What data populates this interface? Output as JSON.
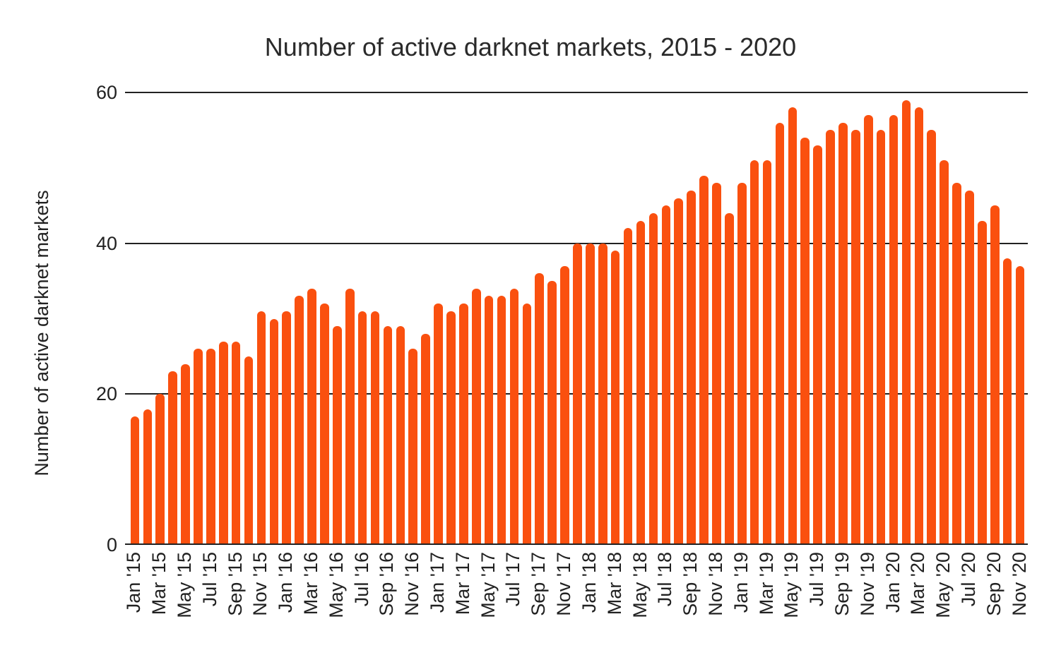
{
  "chart_data": {
    "type": "bar",
    "title": "Number of active darknet markets, 2015 - 2020",
    "xlabel": "",
    "ylabel": "Number of active darknet markets",
    "ylim": [
      0,
      60
    ],
    "yticks": [
      0,
      20,
      40,
      60
    ],
    "grid": "horizontal",
    "legend": "none",
    "x_tick_interval": 2,
    "bar_color": "#fa500f",
    "grid_color": "#212121",
    "text_color": "#212121",
    "background_color": "#ffffff",
    "categories": [
      "Jan '15",
      "Feb '15",
      "Mar '15",
      "Apr '15",
      "May '15",
      "Jun '15",
      "Jul '15",
      "Aug '15",
      "Sep '15",
      "Oct '15",
      "Nov '15",
      "Dec '15",
      "Jan '16",
      "Feb '16",
      "Mar '16",
      "Apr '16",
      "May '16",
      "Jun '16",
      "Jul '16",
      "Aug '16",
      "Sep '16",
      "Oct '16",
      "Nov '16",
      "Dec '16",
      "Jan '17",
      "Feb '17",
      "Mar '17",
      "Apr '17",
      "May '17",
      "Jun '17",
      "Jul '17",
      "Aug '17",
      "Sep '17",
      "Oct '17",
      "Nov '17",
      "Dec '17",
      "Jan '18",
      "Feb '18",
      "Mar '18",
      "Apr '18",
      "May '18",
      "Jun '18",
      "Jul '18",
      "Aug '18",
      "Sep '18",
      "Oct '18",
      "Nov '18",
      "Dec '18",
      "Jan '19",
      "Feb '19",
      "Mar '19",
      "Apr '19",
      "May '19",
      "Jun '19",
      "Jul '19",
      "Aug '19",
      "Sep '19",
      "Oct '19",
      "Nov '19",
      "Dec '19",
      "Jan '20",
      "Feb '20",
      "Mar '20",
      "Apr '20",
      "May '20",
      "Jun '20",
      "Jul '20",
      "Aug '20",
      "Sep '20",
      "Oct '20",
      "Nov '20"
    ],
    "values": [
      17,
      18,
      20,
      23,
      24,
      26,
      26,
      27,
      27,
      25,
      31,
      30,
      31,
      33,
      34,
      32,
      29,
      34,
      31,
      31,
      29,
      29,
      26,
      28,
      32,
      31,
      32,
      34,
      33,
      33,
      34,
      32,
      36,
      35,
      37,
      40,
      40,
      40,
      39,
      42,
      43,
      44,
      45,
      46,
      47,
      49,
      48,
      44,
      48,
      51,
      51,
      56,
      58,
      54,
      53,
      55,
      56,
      55,
      57,
      55,
      57,
      59,
      58,
      55,
      51,
      48,
      47,
      43,
      45,
      38,
      37
    ],
    "visible_x_tick_labels": [
      "Jan '15",
      "Mar '15",
      "May '15",
      "Jul '15",
      "Sep '15",
      "Nov '15",
      "Jan '16",
      "Mar '16",
      "May '16",
      "Jul '16",
      "Sep '16",
      "Nov '16",
      "Jan '17",
      "Mar '17",
      "May '17",
      "Jul '17",
      "Sep '17",
      "Nov '17",
      "Jan '18",
      "Mar '18",
      "May '18",
      "Jul '18",
      "Sep '18",
      "Nov '18",
      "Jan '19",
      "Mar '19",
      "May '19",
      "Jul '19",
      "Sep '19",
      "Nov '19",
      "Jan '20",
      "Mar '20",
      "May '20",
      "Jul '20",
      "Sep '20",
      "Nov '20"
    ]
  }
}
